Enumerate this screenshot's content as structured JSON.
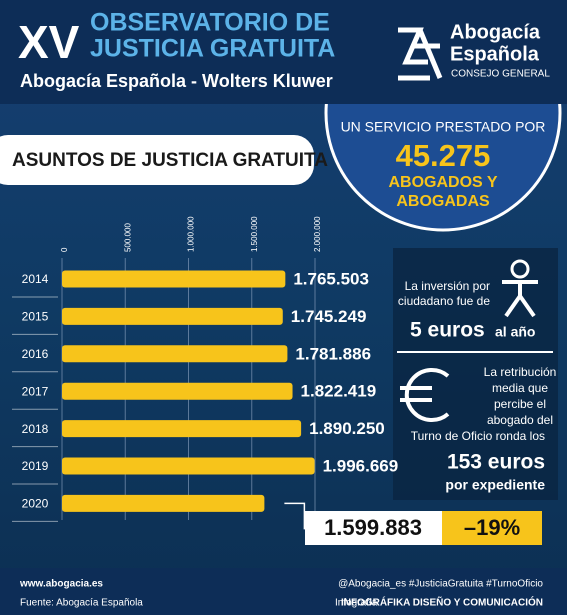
{
  "header": {
    "edition": "XV",
    "title_line1": "OBSERVATORIO DE",
    "title_line2": "JUSTICIA GRATUITA",
    "subtitle": "Abogacía Española - Wolters Kluwer",
    "logo_line1": "Abogacía",
    "logo_line2": "Española",
    "logo_line3": "CONSEJO GENERAL"
  },
  "highlight": {
    "line1": "UN SERVICIO PRESTADO POR",
    "number": "45.275",
    "line2": "ABOGADOS Y",
    "line3": "ABOGADAS"
  },
  "side_panel": {
    "inv_line1": "La inversión por",
    "inv_line2": "ciudadano fue de",
    "inv_value": "5 euros",
    "inv_unit": "al año",
    "ret_line1": "La retribución",
    "ret_line2": "media que",
    "ret_line3": "percibe el",
    "ret_line4": "abogado del",
    "ret_line5": "Turno de Oficio ronda los",
    "ret_value": "153 euros",
    "ret_unit": "por expediente"
  },
  "footer": {
    "website": "www.abogacia.es",
    "source": "Fuente: Abogacía Española",
    "social": "@Abogacia_es   #JusticiaGratuita   #TurnoOficio",
    "credit_label": "Infografía:",
    "credit": "INFOGRÁFIKA DISEÑO Y COMUNICACIÓN"
  },
  "chart_data": {
    "type": "bar",
    "orientation": "horizontal",
    "title": "ASUNTOS DE JUSTICIA GRATUITA",
    "categories": [
      "2014",
      "2015",
      "2016",
      "2017",
      "2018",
      "2019",
      "2020"
    ],
    "values": [
      1765503,
      1745249,
      1781886,
      1822419,
      1890250,
      1996669,
      1599883
    ],
    "value_labels": [
      "1.765.503",
      "1.745.249",
      "1.781.886",
      "1.822.419",
      "1.890.250",
      "1.996.669",
      "1.599.883"
    ],
    "color": "#f7c41b",
    "annotation": "–19%",
    "xlim": [
      0,
      2000000
    ],
    "xticks": [
      0,
      {
        "value": 500000,
        "label": "500.000"
      },
      {
        "value": 1000000,
        "label": "1.000.000"
      },
      {
        "value": 1500000,
        "label": "1.500.000"
      },
      {
        "value": 2000000,
        "label": "2.000.000"
      }
    ],
    "grid": true
  }
}
